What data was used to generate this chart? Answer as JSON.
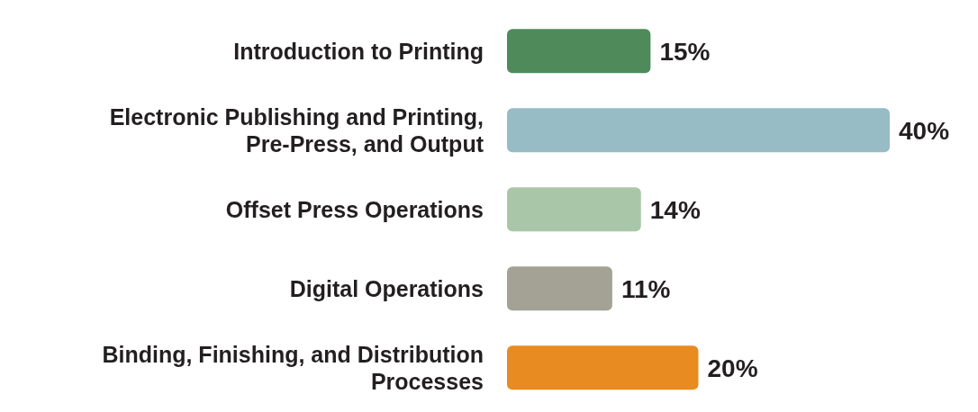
{
  "chart_data": {
    "type": "bar",
    "orientation": "horizontal",
    "categories": [
      "Introduction to Printing",
      "Electronic Publishing and Printing, Pre-Press, and Output",
      "Offset Press Operations",
      "Digital Operations",
      "Binding, Finishing, and Distribution Processes"
    ],
    "values": [
      15,
      40,
      14,
      11,
      20
    ],
    "colors": [
      "#4f8a5b",
      "#97bcc6",
      "#a9c6a9",
      "#a3a295",
      "#e88b20"
    ],
    "value_labels": [
      "15%",
      "40%",
      "14%",
      "11%",
      "20%"
    ]
  }
}
